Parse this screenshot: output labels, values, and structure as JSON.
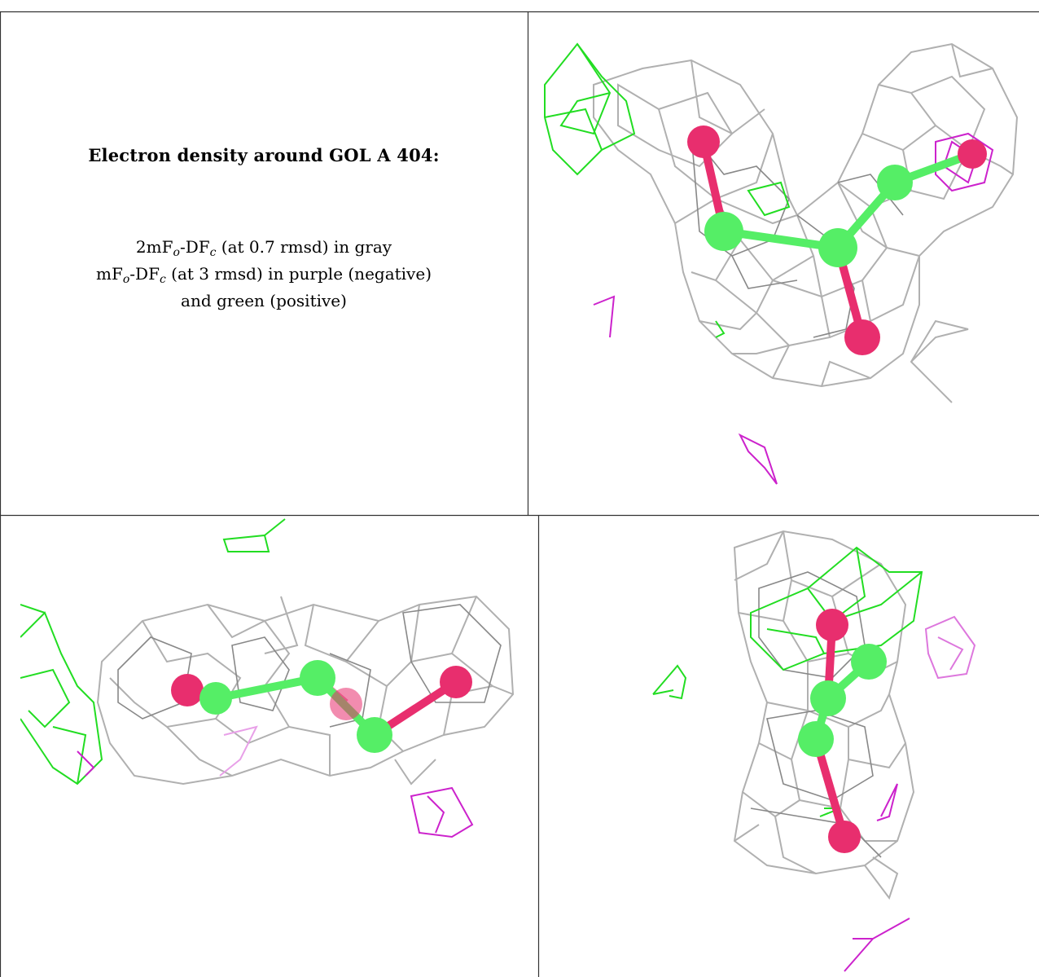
{
  "caption": {
    "title": "Electron density around GOL A 404:",
    "lines": [
      {
        "part1": "2mF",
        "sub1": "o",
        "part2": "-DF",
        "sub2": "c",
        "rest": " (at 0.7 rmsd) in gray"
      },
      {
        "part1": "mF",
        "sub1": "o",
        "part2": "-DF",
        "sub2": "c",
        "rest": " (at 3 rmsd) in purple (negative)"
      },
      {
        "part1": "",
        "sub1": "",
        "part2": "",
        "sub2": "",
        "rest": "and green (positive)"
      }
    ]
  },
  "colors": {
    "mesh_2fofc": "#a8a8a8",
    "mesh_fofc_negative": "#cc22cc",
    "mesh_fofc_positive": "#22dd22",
    "carbon_atoms": "#55ee66",
    "oxygen_atoms": "#e82e6e",
    "frame": "#333333",
    "background": "#ffffff"
  },
  "panels": [
    {
      "view": "top-right"
    },
    {
      "view": "bottom-left"
    },
    {
      "view": "bottom-right"
    }
  ]
}
